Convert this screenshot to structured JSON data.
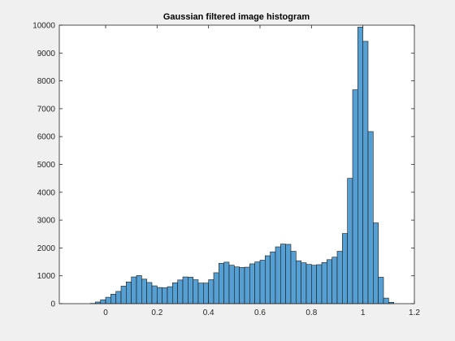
{
  "chart_data": {
    "type": "bar",
    "title": "Gaussian filtered image histogram",
    "xlabel": "",
    "ylabel": "",
    "xlim": [
      -0.18,
      1.2
    ],
    "ylim": [
      0,
      10000
    ],
    "xticks": [
      0,
      0.2,
      0.4,
      0.6,
      0.8,
      1,
      1.2
    ],
    "xtick_labels": [
      "0",
      "0.2",
      "0.4",
      "0.6",
      "0.8",
      "1",
      "1.2"
    ],
    "yticks": [
      0,
      1000,
      2000,
      3000,
      4000,
      5000,
      6000,
      7000,
      8000,
      9000,
      10000
    ],
    "ytick_labels": [
      "0",
      "1000",
      "2000",
      "3000",
      "4000",
      "5000",
      "6000",
      "7000",
      "8000",
      "9000",
      "10000"
    ],
    "grid": false,
    "bin_width": 0.02,
    "bin_start": -0.06,
    "values": [
      10,
      60,
      140,
      230,
      340,
      440,
      630,
      780,
      960,
      1010,
      880,
      760,
      640,
      580,
      570,
      610,
      750,
      850,
      960,
      950,
      860,
      740,
      740,
      860,
      1110,
      1450,
      1490,
      1380,
      1320,
      1300,
      1310,
      1430,
      1500,
      1560,
      1720,
      1860,
      2040,
      2140,
      2130,
      1880,
      1540,
      1470,
      1410,
      1380,
      1400,
      1480,
      1580,
      1670,
      1880,
      2520,
      4500,
      7680,
      9930,
      9420,
      6180,
      2900,
      950,
      200,
      50
    ],
    "bar_color": "#569fd3",
    "edge_color": "#1a1a1a"
  }
}
